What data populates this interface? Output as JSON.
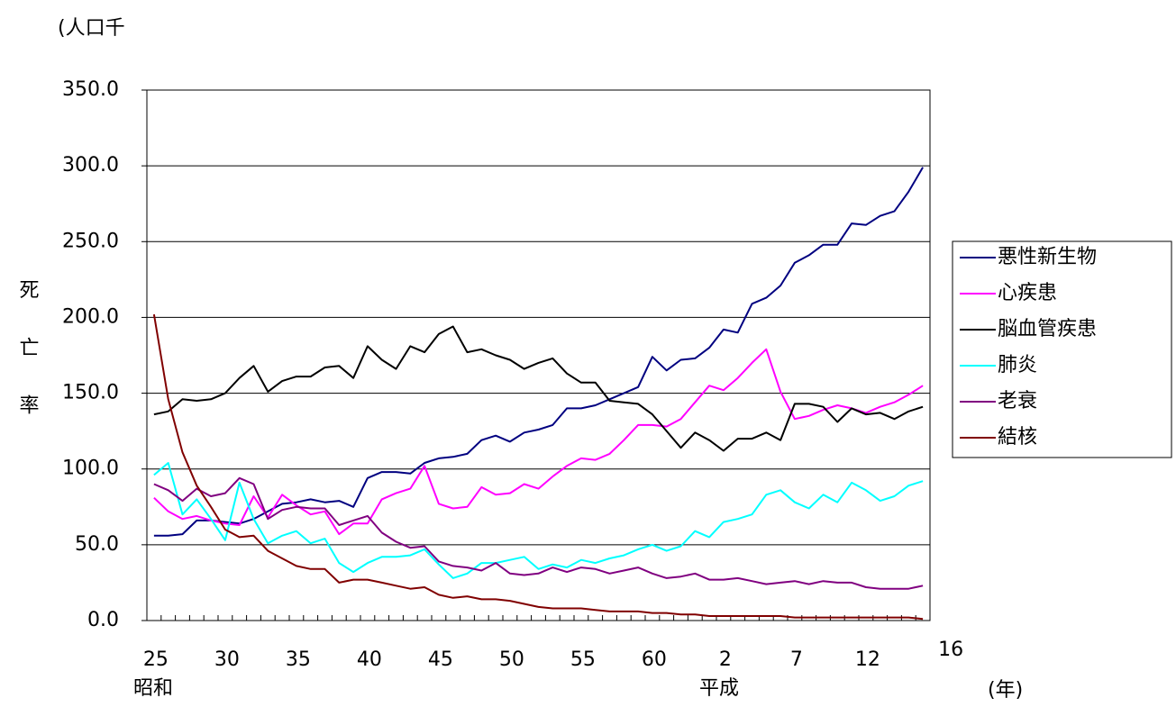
{
  "chart_data": {
    "type": "line",
    "title": "(人口千",
    "y_label": "死亡率",
    "x_unit": "(年)",
    "era_labels": [
      "昭和",
      "平成"
    ],
    "categories": [
      "25",
      null,
      null,
      null,
      null,
      "30",
      null,
      null,
      null,
      null,
      "35",
      null,
      null,
      null,
      null,
      "40",
      null,
      null,
      null,
      null,
      "45",
      null,
      null,
      null,
      null,
      "50",
      null,
      null,
      null,
      null,
      "55",
      null,
      null,
      null,
      null,
      "60",
      null,
      null,
      null,
      null,
      "2",
      null,
      null,
      null,
      null,
      "7",
      null,
      null,
      null,
      null,
      "12",
      null,
      null,
      null,
      "16"
    ],
    "ylim": [
      0,
      350
    ],
    "yticks": [
      {
        "value": 0,
        "label": "0.0"
      },
      {
        "value": 50,
        "label": "50.0"
      },
      {
        "value": 100,
        "label": "100.0"
      },
      {
        "value": 150,
        "label": "150.0"
      },
      {
        "value": 200,
        "label": "200.0"
      },
      {
        "value": 250,
        "label": "250.0"
      },
      {
        "value": 300,
        "label": "300.0"
      },
      {
        "value": 350,
        "label": "350.0"
      }
    ],
    "grid": true,
    "legend": "right",
    "series": [
      {
        "name": "悪性新生物",
        "color": "#000080",
        "values": [
          56,
          56,
          57,
          66,
          66,
          65,
          64,
          67,
          72,
          77,
          78,
          80,
          78,
          79,
          75,
          94,
          98,
          98,
          97,
          104,
          107,
          108,
          110,
          119,
          122,
          118,
          124,
          126,
          129,
          140,
          140,
          142,
          146,
          150,
          154,
          174,
          165,
          172,
          173,
          180,
          192,
          190,
          209,
          213,
          221,
          236,
          241,
          248,
          248,
          262,
          261,
          267,
          270,
          283,
          299
        ]
      },
      {
        "name": "心疾患",
        "color": "#ff00ff",
        "values": [
          81,
          72,
          67,
          69,
          66,
          64,
          63,
          82,
          68,
          83,
          76,
          70,
          72,
          57,
          64,
          64,
          80,
          84,
          87,
          102,
          77,
          74,
          75,
          88,
          83,
          84,
          90,
          87,
          95,
          102,
          107,
          106,
          110,
          119,
          129,
          129,
          128,
          133,
          144,
          155,
          152,
          160,
          170,
          179,
          151,
          133,
          135,
          139,
          142,
          140,
          137,
          141,
          144,
          149,
          155
        ]
      },
      {
        "name": "脳血管疾患",
        "color": "#000000",
        "values": [
          136,
          138,
          146,
          145,
          146,
          150,
          160,
          168,
          151,
          158,
          161,
          161,
          167,
          168,
          160,
          181,
          172,
          166,
          181,
          177,
          189,
          194,
          177,
          179,
          175,
          172,
          166,
          170,
          173,
          163,
          157,
          157,
          145,
          144,
          143,
          136,
          125,
          114,
          124,
          119,
          112,
          120,
          120,
          124,
          119,
          143,
          143,
          141,
          131,
          140,
          136,
          137,
          133,
          138,
          141
        ]
      },
      {
        "name": "肺炎",
        "color": "#00ffff",
        "values": [
          96,
          104,
          70,
          80,
          67,
          53,
          91,
          67,
          51,
          56,
          59,
          51,
          54,
          38,
          32,
          38,
          42,
          42,
          43,
          47,
          37,
          28,
          31,
          38,
          38,
          40,
          42,
          34,
          37,
          35,
          40,
          38,
          41,
          43,
          47,
          50,
          46,
          49,
          59,
          55,
          65,
          67,
          70,
          83,
          86,
          78,
          74,
          83,
          78,
          91,
          86,
          79,
          82,
          89,
          92
        ]
      },
      {
        "name": "老衰",
        "color": "#800080",
        "values": [
          90,
          86,
          79,
          87,
          82,
          84,
          94,
          90,
          67,
          73,
          75,
          74,
          74,
          63,
          66,
          69,
          58,
          52,
          48,
          49,
          39,
          36,
          35,
          33,
          38,
          31,
          30,
          31,
          35,
          32,
          35,
          34,
          31,
          33,
          35,
          31,
          28,
          29,
          31,
          27,
          27,
          28,
          26,
          24,
          25,
          26,
          24,
          26,
          25,
          25,
          22,
          21,
          21,
          21,
          23
        ]
      },
      {
        "name": "結核",
        "color": "#800000",
        "values": [
          202,
          146,
          111,
          89,
          75,
          60,
          55,
          56,
          46,
          41,
          36,
          34,
          34,
          25,
          27,
          27,
          25,
          23,
          21,
          22,
          17,
          15,
          16,
          14,
          14,
          13,
          11,
          9,
          8,
          8,
          8,
          7,
          6,
          6,
          6,
          5,
          5,
          4,
          4,
          3,
          3,
          3,
          3,
          3,
          3,
          2,
          2,
          2,
          2,
          2,
          2,
          2,
          2,
          2,
          1
        ]
      }
    ]
  }
}
